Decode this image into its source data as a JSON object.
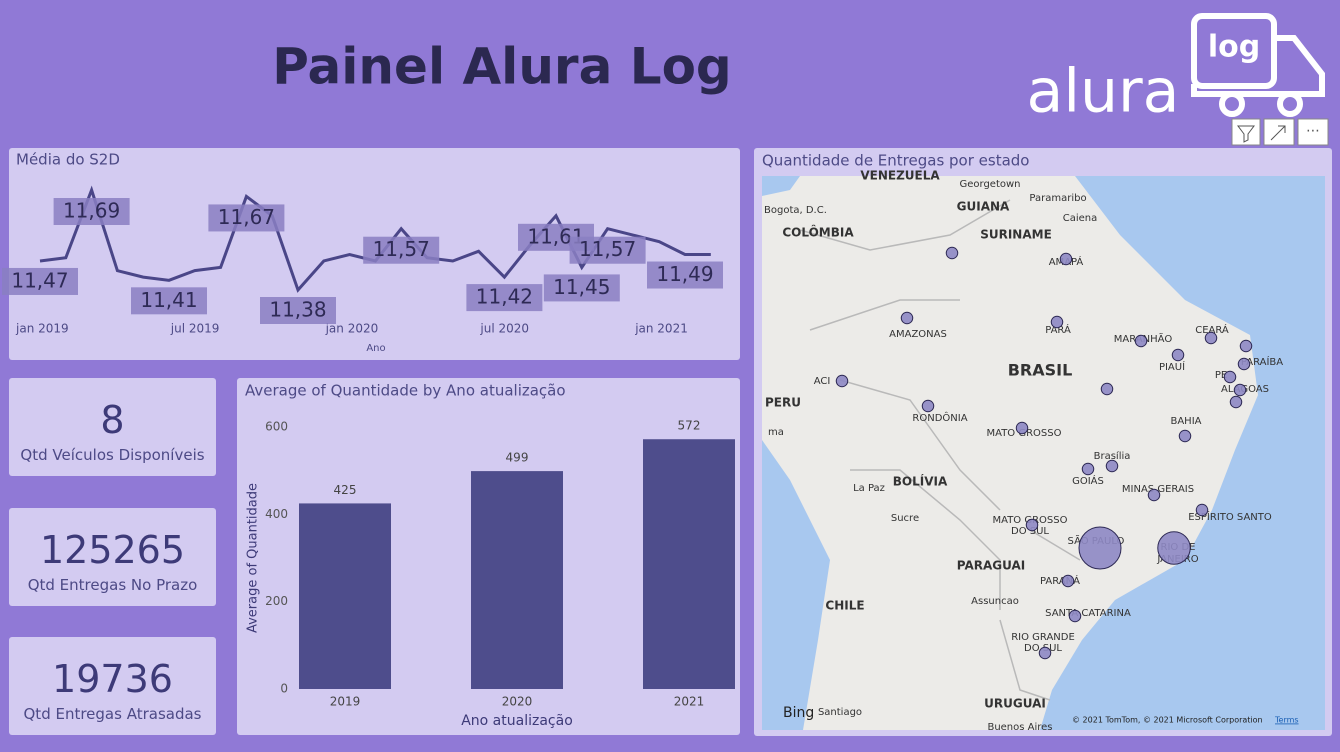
{
  "header": {
    "title": "Painel Alura Log",
    "logo_text": "alura",
    "logo_badge": "log"
  },
  "cards": [
    {
      "value": 8,
      "label": "Qtd Veículos Disponíveis"
    },
    {
      "value": 125265,
      "label": "Qtd Entregas No Prazo"
    },
    {
      "value": 19736,
      "label": "Qtd Entregas Atrasadas"
    }
  ],
  "chart_data": [
    {
      "type": "line",
      "title": "Média do S2D",
      "x_label": "Ano",
      "color": "#4a4688",
      "x": [
        "2019-01",
        "2019-02",
        "2019-03",
        "2019-04",
        "2019-05",
        "2019-06",
        "2019-07",
        "2019-08",
        "2019-09",
        "2019-10",
        "2019-11",
        "2019-12",
        "2020-01",
        "2020-02",
        "2020-03",
        "2020-04",
        "2020-05",
        "2020-06",
        "2020-07",
        "2020-08",
        "2020-09",
        "2020-10",
        "2020-11",
        "2020-12",
        "2021-01",
        "2021-02",
        "2021-03"
      ],
      "values": [
        11.47,
        11.48,
        11.69,
        11.44,
        11.42,
        11.41,
        11.44,
        11.45,
        11.67,
        11.61,
        11.38,
        11.47,
        11.49,
        11.47,
        11.57,
        11.48,
        11.47,
        11.5,
        11.42,
        11.52,
        11.61,
        11.45,
        11.57,
        11.55,
        11.53,
        11.49,
        11.49
      ],
      "value_labels": [
        "11,47",
        null,
        "11,69",
        null,
        null,
        "11,41",
        null,
        null,
        "11,67",
        null,
        "11,38",
        null,
        null,
        null,
        "11,57",
        null,
        null,
        null,
        "11,42",
        null,
        "11,61",
        "11,45",
        "11,57",
        null,
        null,
        "11,49",
        null
      ],
      "xticks": [
        {
          "value": "2019-01",
          "label": "jan 2019"
        },
        {
          "value": "2019-07",
          "label": "jul 2019"
        },
        {
          "value": "2020-01",
          "label": "jan 2020"
        },
        {
          "value": "2020-07",
          "label": "jul 2020"
        },
        {
          "value": "2021-01",
          "label": "jan 2021"
        }
      ]
    },
    {
      "type": "bar",
      "title": "Average of Quantidade by Ano atualização",
      "x_label": "Ano atualização",
      "y_label": "Average of Quantidade",
      "color": "#4e4d8c",
      "categories": [
        "2019",
        "2020",
        "2021"
      ],
      "values": [
        425,
        499,
        572
      ],
      "ylim": [
        0,
        600
      ],
      "yticks": [
        0,
        200,
        400,
        600
      ]
    }
  ],
  "map": {
    "title": "Quantidade de Entregas por estado",
    "labels": [
      "VENEZUELA",
      "Georgetown",
      "Paramaribo",
      "Caiena",
      "GUIANA",
      "SURINAME",
      "Bogota, D.C.",
      "COLÔMBIA",
      "AMAPÁ",
      "AMAZONAS",
      "PARÁ",
      "MARANHÃO",
      "CEARÁ",
      "PIAUÍ",
      "PARAÍBA",
      "PE",
      "ALAGOAS",
      "BRASIL",
      "ACI",
      "PERU",
      "RONDÔNIA",
      "MATO GROSSO",
      "BAHIA",
      "Brasília",
      "GOIÁS",
      "MINAS GERAIS",
      "ESPÍRITO SANTO",
      "BOLÍVIA",
      "La Paz",
      "Sucre",
      "MATO GROSSO",
      "DO SUL",
      "SÃO PAULO",
      "RIO DE",
      "JANEIRO",
      "PARAGUAI",
      "Assuncao",
      "PARANÁ",
      "SANTA CATARINA",
      "CHILE",
      "RIO GRANDE",
      "DO SUL",
      "URUGUAI",
      "Santiago",
      "Buenos Aires",
      "ma"
    ],
    "bubble_sizes": [
      1000,
      1000,
      1000,
      1000,
      1000,
      1000,
      1000,
      1000,
      1000,
      1000,
      1000,
      1000,
      1000,
      1000,
      1000,
      1000,
      1000,
      1000,
      1000,
      1000,
      1000,
      1000,
      13400,
      8000,
      1000,
      1000,
      1000
    ],
    "brand": "Bing",
    "copyright": "© 2021 TomTom, © 2021 Microsoft Corporation",
    "terms": "Terms"
  }
}
